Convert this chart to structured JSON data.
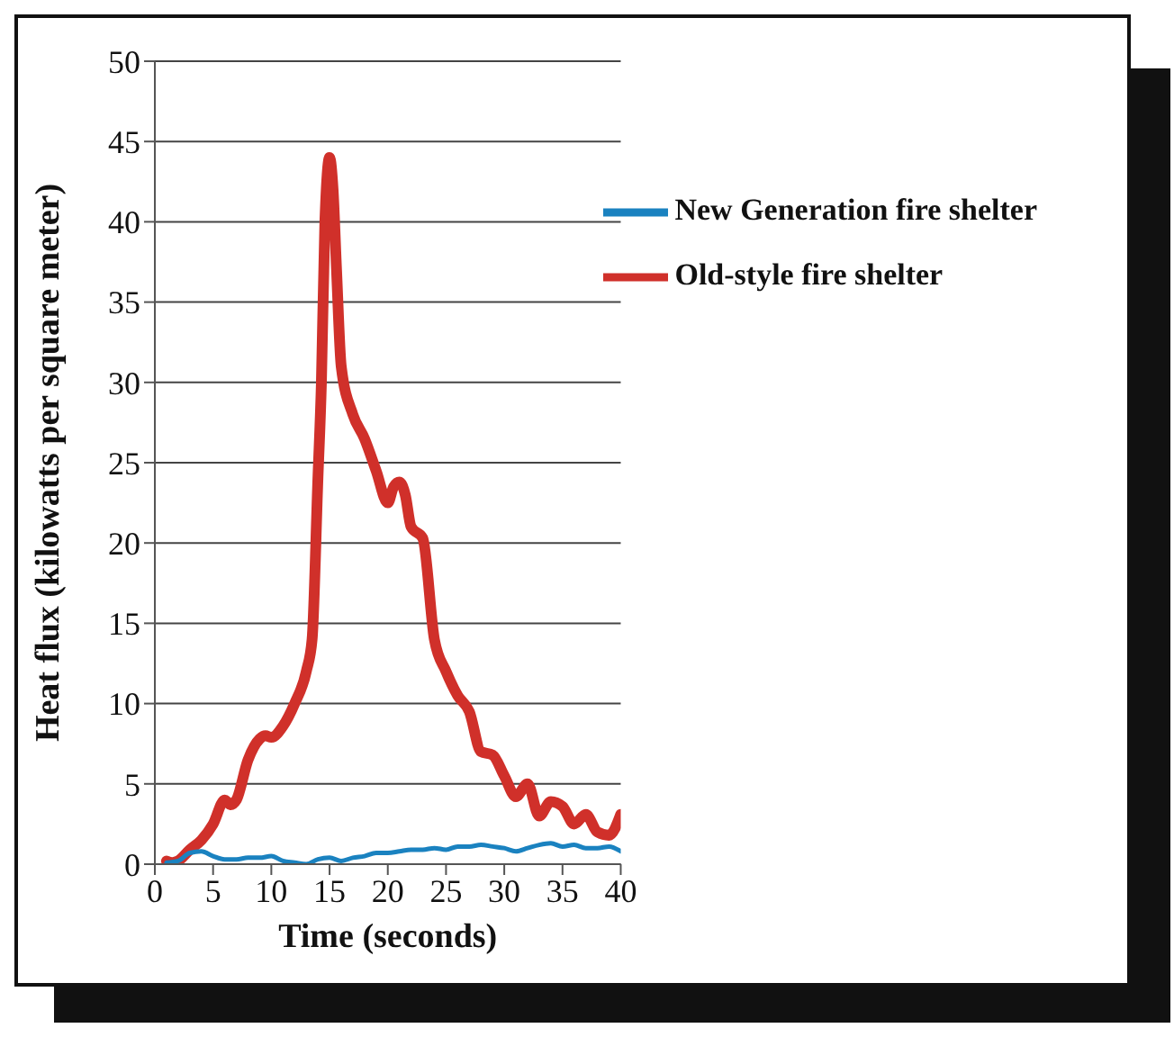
{
  "chart_data": {
    "type": "line",
    "xlabel": "Time (seconds)",
    "ylabel": "Heat flux (kilowatts per square meter)",
    "xlim": [
      0,
      40
    ],
    "xticks": [
      0,
      5,
      10,
      15,
      20,
      25,
      30,
      35,
      40
    ],
    "ylim": [
      0,
      50
    ],
    "yticks": [
      0,
      5,
      10,
      15,
      20,
      25,
      30,
      35,
      40,
      45,
      50
    ],
    "grid": "y",
    "legend": "top right",
    "marker": "none",
    "line_style": "solid",
    "series": [
      {
        "name": "Old-style fire shelter",
        "color": "#d0302a",
        "x": [
          1,
          1.5,
          2,
          3,
          4,
          5,
          6,
          6.5,
          7,
          8,
          9,
          9.5,
          10,
          11,
          12,
          13,
          13.5,
          14,
          14.3,
          14.6,
          15,
          15.3,
          15.6,
          16,
          17,
          18,
          19,
          20,
          20.5,
          21,
          21.5,
          22,
          23,
          24,
          25,
          26,
          27,
          28,
          29,
          30,
          31,
          32,
          33,
          34,
          35,
          36,
          37,
          38,
          39,
          40
        ],
        "values": [
          0.2,
          0.1,
          0.2,
          0.9,
          1.5,
          2.5,
          4,
          3.7,
          4,
          6.5,
          7.8,
          8,
          7.9,
          8.6,
          10,
          12,
          14,
          24,
          30,
          40,
          44,
          42,
          37,
          31,
          28,
          26.5,
          24.5,
          22.5,
          23.5,
          23.8,
          23,
          21,
          20.3,
          14,
          12,
          10.5,
          9.5,
          7,
          6.8,
          5.5,
          4.2,
          5,
          3,
          3.9,
          3.6,
          2.5,
          3.1,
          2,
          1.8,
          3.1
        ]
      },
      {
        "name": "New Generation fire shelter",
        "color": "#1a82c0",
        "x": [
          1,
          2,
          3,
          4,
          5,
          6,
          7,
          8,
          9,
          10,
          11,
          12,
          13,
          14,
          15,
          16,
          17,
          18,
          19,
          20,
          21,
          22,
          23,
          24,
          25,
          26,
          27,
          28,
          29,
          30,
          31,
          32,
          33,
          34,
          35,
          36,
          37,
          38,
          39,
          40
        ],
        "values": [
          0.1,
          0.2,
          0.7,
          0.8,
          0.5,
          0.3,
          0.3,
          0.4,
          0.4,
          0.5,
          0.2,
          0.1,
          0,
          0.3,
          0.4,
          0.2,
          0.4,
          0.5,
          0.7,
          0.7,
          0.8,
          0.9,
          0.9,
          1,
          0.9,
          1.1,
          1.1,
          1.2,
          1.1,
          1,
          0.8,
          1,
          1.2,
          1.3,
          1.1,
          1.2,
          1,
          1,
          1.1,
          0.8
        ]
      }
    ]
  }
}
